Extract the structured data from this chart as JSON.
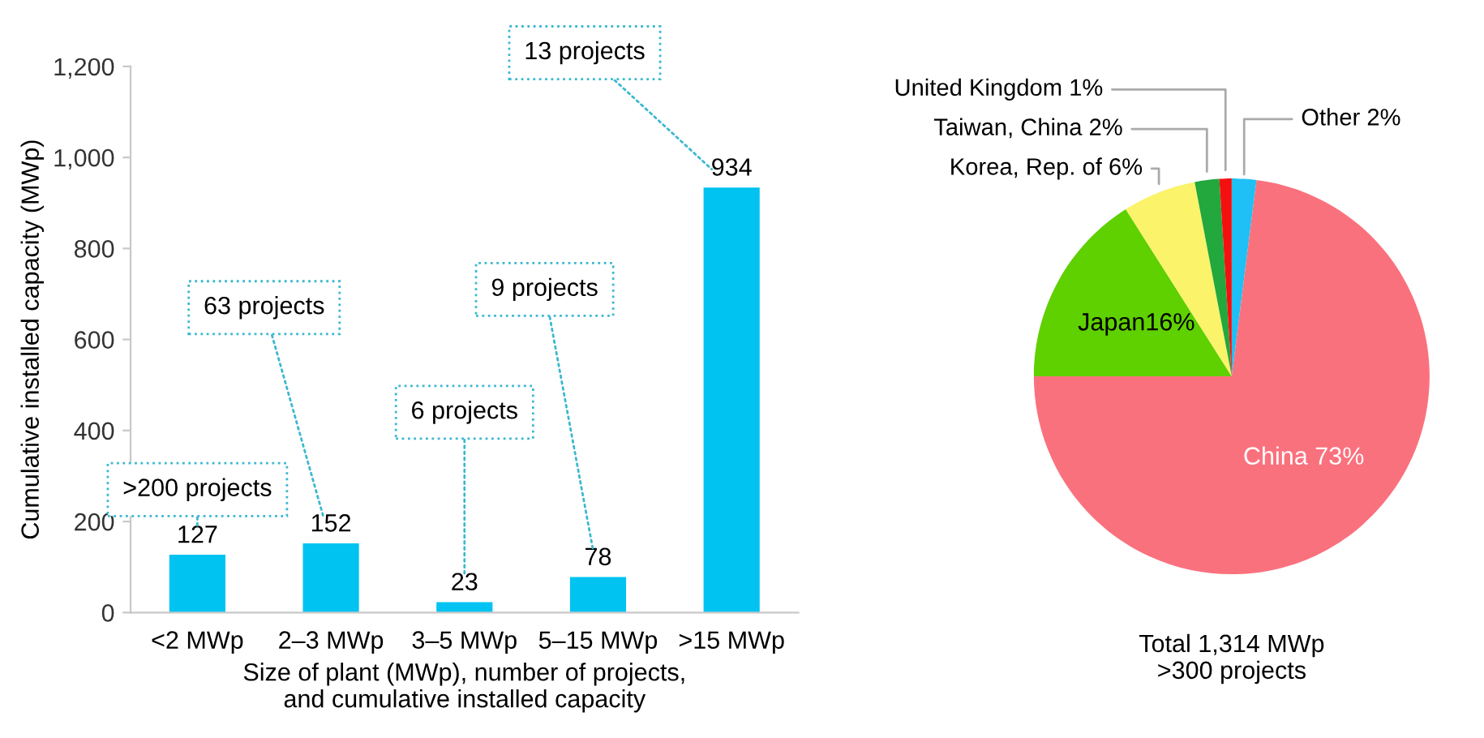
{
  "chart_data": [
    {
      "type": "bar",
      "xlabel": "Size of plant (MWp), number of projects,\nand cumulative installed capacity",
      "ylabel": "Cumulative installed capacity (MWp)",
      "categories": [
        "<2 MWp",
        "2–3 MWp",
        "3–5 MWp",
        "5–15 MWp",
        ">15 MWp"
      ],
      "values": [
        127,
        152,
        23,
        78,
        934
      ],
      "color": "#00c3f2",
      "ylim": [
        0,
        1200
      ],
      "yticks": [
        0,
        200,
        400,
        600,
        800,
        {
          "value": 1000,
          "label": "1,000"
        },
        {
          "value": 1200,
          "label": "1,200"
        }
      ],
      "grid": false,
      "data_labels": true,
      "annotations": [
        ">200 projects",
        "63 projects",
        "6 projects",
        "9 projects",
        "13 projects"
      ]
    },
    {
      "type": "pie",
      "categories": [
        "Other 2%",
        "China 73%",
        "Japan16%",
        "Korea, Rep. of 6%",
        "Taiwan, China 2%",
        "United Kingdom 1%"
      ],
      "values": [
        2,
        73,
        16,
        6,
        2,
        1
      ],
      "colors": [
        "#1ec0f5",
        "#fa717e",
        "#5fd000",
        "#fbf36a",
        "#22a83c",
        "#f51010"
      ],
      "annotations": [
        "Total 1,314 MWp\n>300 projects"
      ]
    }
  ]
}
